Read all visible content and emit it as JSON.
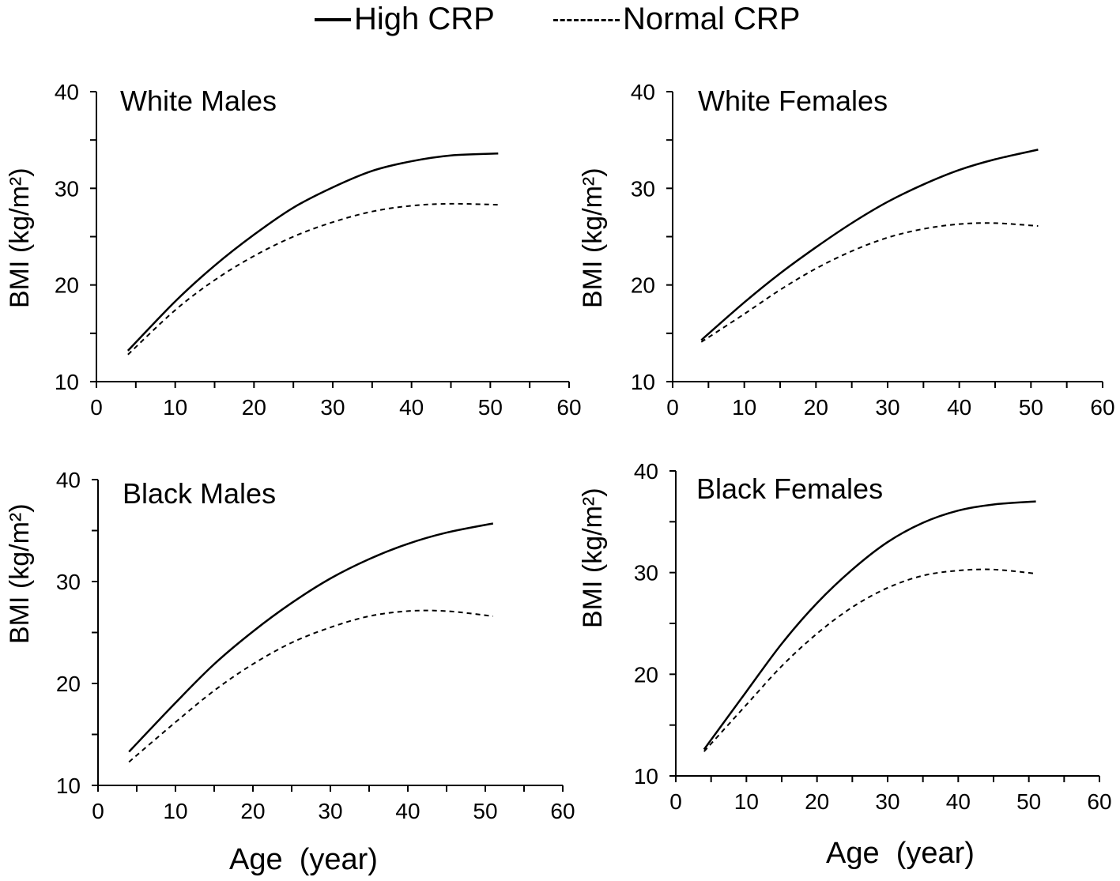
{
  "legend": {
    "high_label": "High CRP",
    "normal_label": "Normal CRP"
  },
  "colors": {
    "line": "#000000",
    "background": "#ffffff"
  },
  "chart_data": [
    {
      "type": "line",
      "title": "White Males",
      "xlabel": "",
      "ylabel": "BMI (kg/m²)",
      "xlim": [
        0,
        60
      ],
      "ylim": [
        10,
        40
      ],
      "xticks": [
        0,
        10,
        20,
        30,
        40,
        50,
        60
      ],
      "yticks": [
        10,
        20,
        30,
        40
      ],
      "grid": false,
      "series": [
        {
          "name": "High CRP",
          "style": "solid",
          "x": [
            4,
            10,
            15,
            20,
            25,
            30,
            35,
            40,
            45,
            51
          ],
          "y": [
            13.2,
            18.3,
            22.0,
            25.2,
            28.0,
            30.1,
            31.8,
            32.8,
            33.4,
            33.6
          ]
        },
        {
          "name": "Normal CRP",
          "style": "dashed",
          "x": [
            4,
            10,
            15,
            20,
            25,
            30,
            35,
            40,
            45,
            51
          ],
          "y": [
            12.8,
            17.4,
            20.5,
            23.0,
            25.0,
            26.5,
            27.6,
            28.2,
            28.4,
            28.3
          ]
        }
      ]
    },
    {
      "type": "line",
      "title": "White Females",
      "xlabel": "",
      "ylabel": "BMI (kg/m²)",
      "xlim": [
        0,
        60
      ],
      "ylim": [
        10,
        40
      ],
      "xticks": [
        0,
        10,
        20,
        30,
        40,
        50,
        60
      ],
      "yticks": [
        10,
        20,
        30,
        40
      ],
      "grid": false,
      "series": [
        {
          "name": "High CRP",
          "style": "solid",
          "x": [
            4,
            10,
            15,
            20,
            25,
            30,
            35,
            40,
            45,
            51
          ],
          "y": [
            14.3,
            18.2,
            21.2,
            23.9,
            26.4,
            28.6,
            30.4,
            31.9,
            33.0,
            34.0
          ]
        },
        {
          "name": "Normal CRP",
          "style": "dashed",
          "x": [
            4,
            10,
            15,
            20,
            25,
            30,
            35,
            40,
            45,
            51
          ],
          "y": [
            14.1,
            17.0,
            19.5,
            21.7,
            23.5,
            24.9,
            25.8,
            26.3,
            26.4,
            26.1
          ]
        }
      ]
    },
    {
      "type": "line",
      "title": "Black Males",
      "xlabel": "Age  (year)",
      "ylabel": "BMI (kg/m²)",
      "xlim": [
        0,
        60
      ],
      "ylim": [
        10,
        40
      ],
      "xticks": [
        0,
        10,
        20,
        30,
        40,
        50,
        60
      ],
      "yticks": [
        10,
        20,
        30,
        40
      ],
      "grid": false,
      "series": [
        {
          "name": "High CRP",
          "style": "solid",
          "x": [
            4,
            10,
            15,
            20,
            25,
            30,
            35,
            40,
            45,
            51
          ],
          "y": [
            13.3,
            18.1,
            21.9,
            25.1,
            27.9,
            30.3,
            32.2,
            33.7,
            34.8,
            35.7
          ]
        },
        {
          "name": "Normal CRP",
          "style": "dashed",
          "x": [
            4,
            10,
            15,
            20,
            25,
            30,
            35,
            40,
            45,
            51
          ],
          "y": [
            12.3,
            16.2,
            19.3,
            21.9,
            24.0,
            25.5,
            26.6,
            27.1,
            27.1,
            26.6
          ]
        }
      ]
    },
    {
      "type": "line",
      "title": "Black Females",
      "xlabel": "Age  (year)",
      "ylabel": "BMI (kg/m²)",
      "xlim": [
        0,
        60
      ],
      "ylim": [
        10,
        40
      ],
      "xticks": [
        0,
        10,
        20,
        30,
        40,
        50,
        60
      ],
      "yticks": [
        10,
        20,
        30,
        40
      ],
      "grid": false,
      "series": [
        {
          "name": "High CRP",
          "style": "solid",
          "x": [
            4,
            10,
            15,
            20,
            25,
            30,
            35,
            40,
            45,
            51
          ],
          "y": [
            12.6,
            18.3,
            23.0,
            27.0,
            30.3,
            33.0,
            34.9,
            36.1,
            36.7,
            37.0
          ]
        },
        {
          "name": "Normal CRP",
          "style": "dashed",
          "x": [
            4,
            10,
            15,
            20,
            25,
            30,
            35,
            40,
            45,
            51
          ],
          "y": [
            12.4,
            17.0,
            20.8,
            24.0,
            26.6,
            28.5,
            29.7,
            30.2,
            30.3,
            29.9
          ]
        }
      ]
    }
  ]
}
